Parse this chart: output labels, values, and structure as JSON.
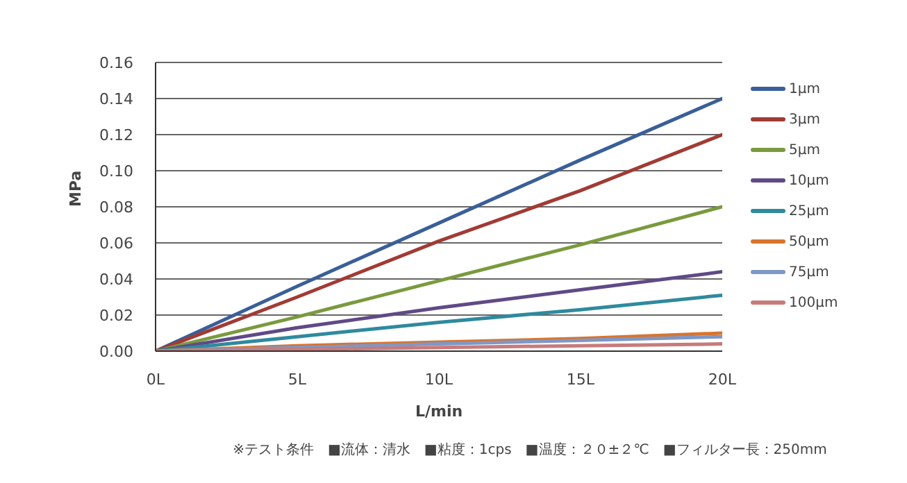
{
  "chart_data": {
    "type": "line",
    "xlabel": "L/min",
    "ylabel": "MPa",
    "x": [
      0,
      5,
      10,
      15,
      20
    ],
    "xlim": [
      0,
      20
    ],
    "xticks": [
      {
        "value": 0,
        "label": "0L"
      },
      {
        "value": 5,
        "label": "5L"
      },
      {
        "value": 10,
        "label": "10L"
      },
      {
        "value": 15,
        "label": "15L"
      },
      {
        "value": 20,
        "label": "20L"
      }
    ],
    "ylim": [
      0,
      0.16
    ],
    "yticks": [
      {
        "value": 0,
        "label": "0.00"
      },
      {
        "value": 0.02,
        "label": "0.02"
      },
      {
        "value": 0.04,
        "label": "0.04"
      },
      {
        "value": 0.06,
        "label": "0.06"
      },
      {
        "value": 0.08,
        "label": "0.08"
      },
      {
        "value": 0.1,
        "label": "0.10"
      },
      {
        "value": 0.12,
        "label": "0.12"
      },
      {
        "value": 0.14,
        "label": "0.14"
      },
      {
        "value": 0.16,
        "label": "0.16"
      }
    ],
    "grid": "y",
    "legend": "right",
    "marker": "none",
    "line_style": "solid",
    "series": [
      {
        "name": "1μm",
        "color": "#3a5f98",
        "values": [
          0,
          0.036,
          0.071,
          0.106,
          0.14
        ]
      },
      {
        "name": "3μm",
        "color": "#a13b35",
        "values": [
          0,
          0.03,
          0.061,
          0.089,
          0.12
        ]
      },
      {
        "name": "5μm",
        "color": "#7a9a3e",
        "values": [
          0,
          0.019,
          0.039,
          0.059,
          0.08
        ]
      },
      {
        "name": "10μm",
        "color": "#5f4a86",
        "values": [
          0,
          0.013,
          0.024,
          0.034,
          0.044
        ]
      },
      {
        "name": "25μm",
        "color": "#2f8a9e",
        "values": [
          0,
          0.008,
          0.016,
          0.023,
          0.031
        ]
      },
      {
        "name": "50μm",
        "color": "#d7752f",
        "values": [
          0,
          0.003,
          0.005,
          0.007,
          0.01
        ]
      },
      {
        "name": "75μm",
        "color": "#7f97c6",
        "values": [
          0,
          0.002,
          0.004,
          0.006,
          0.008
        ]
      },
      {
        "name": "100μm",
        "color": "#c77b7b",
        "values": [
          0,
          0.001,
          0.002,
          0.003,
          0.004
        ]
      }
    ],
    "annotations": [
      "※テスト条件　■流体：清水　■粘度：1cps　■温度：２０±２℃　■フィルター長：250mm"
    ]
  }
}
